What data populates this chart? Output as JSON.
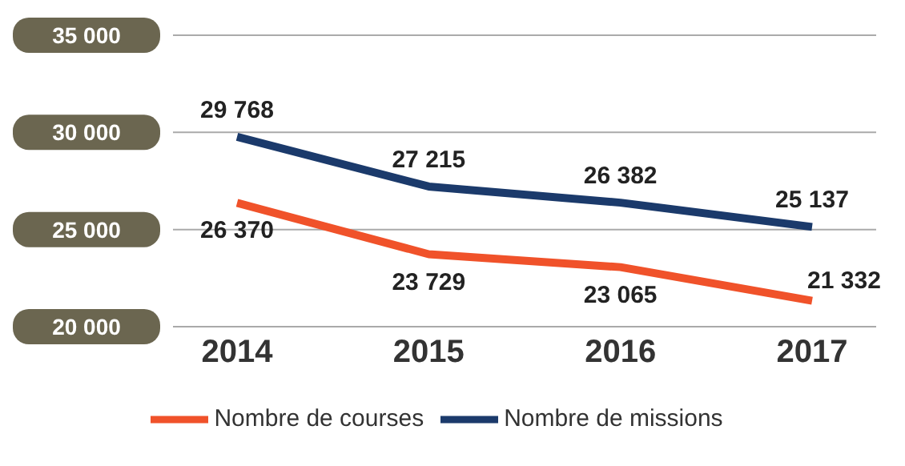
{
  "chart_data": {
    "type": "line",
    "categories": [
      "2014",
      "2015",
      "2016",
      "2017"
    ],
    "series": [
      {
        "name": "Nombre de missions",
        "color": "#1b3a6b",
        "values": [
          29768,
          27215,
          26382,
          25137
        ],
        "value_labels": [
          "29 768",
          "27 215",
          "26 382",
          "25 137"
        ]
      },
      {
        "name": "Nombre de courses",
        "color": "#f0522a",
        "values": [
          26370,
          23729,
          23065,
          21332
        ],
        "value_labels": [
          "26 370",
          "23 729",
          "23 065",
          "21 332"
        ]
      }
    ],
    "ylim": [
      20000,
      35000
    ],
    "yticks": [
      {
        "value": 20000,
        "label": "20 000"
      },
      {
        "value": 25000,
        "label": "25 000"
      },
      {
        "value": 30000,
        "label": "30 000"
      },
      {
        "value": 35000,
        "label": "35 000"
      }
    ],
    "grid": "y",
    "legend": "bottom",
    "marker": "none",
    "line_style": "solid"
  }
}
